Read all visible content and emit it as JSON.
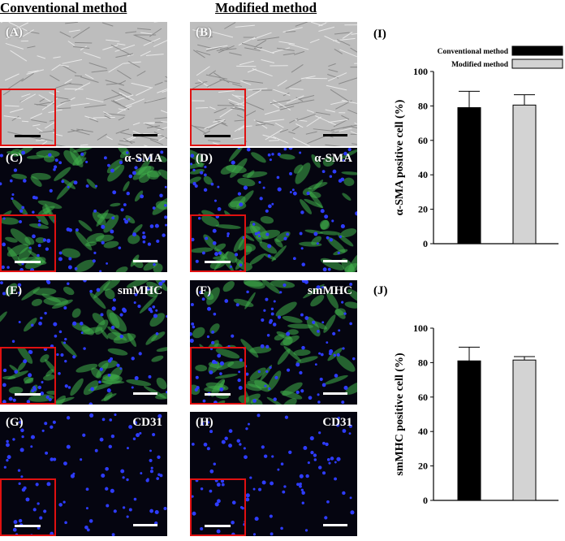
{
  "columns": {
    "left_title": "Conventional method",
    "right_title": "Modified method"
  },
  "panels": [
    {
      "id": "A",
      "label": "(A)",
      "marker": "",
      "kind": "phase"
    },
    {
      "id": "B",
      "label": "(B)",
      "marker": "",
      "kind": "phase"
    },
    {
      "id": "C",
      "label": "(C)",
      "marker": "α-SMA",
      "kind": "green-dense"
    },
    {
      "id": "D",
      "label": "(D)",
      "marker": "α-SMA",
      "kind": "green-dense"
    },
    {
      "id": "E",
      "label": "(E)",
      "marker": "smMHC",
      "kind": "green-dense"
    },
    {
      "id": "F",
      "label": "(F)",
      "marker": "smMHC",
      "kind": "green-dense"
    },
    {
      "id": "G",
      "label": "(G)",
      "marker": "CD31",
      "kind": "blue-only"
    },
    {
      "id": "H",
      "label": "(H)",
      "marker": "CD31",
      "kind": "blue-only"
    }
  ],
  "colors": {
    "conventional": "#000000",
    "modified": "#d3d3d3",
    "inset_border": "#e01010",
    "nuclei": "#2e3cff",
    "cytoskeleton": "#3fae4a"
  },
  "chart_data": [
    {
      "type": "bar",
      "panel_label": "(I)",
      "categories": [
        "Conventional method",
        "Modified method"
      ],
      "values": [
        79,
        80.5
      ],
      "errors": [
        9.5,
        6
      ],
      "ylabel": "α-SMA positive cell (%)",
      "ylim": [
        0,
        100
      ],
      "yticks": [
        0,
        20,
        40,
        60,
        80,
        100
      ],
      "legend": [
        "Conventional method",
        "Modified method"
      ],
      "legend_position": "top-right"
    },
    {
      "type": "bar",
      "panel_label": "(J)",
      "categories": [
        "Conventional method",
        "Modified method"
      ],
      "values": [
        81,
        81.5
      ],
      "errors": [
        8,
        2
      ],
      "ylabel": "smMHC positive cell (%)",
      "ylim": [
        0,
        100
      ],
      "yticks": [
        0,
        20,
        40,
        60,
        80,
        100
      ]
    }
  ]
}
